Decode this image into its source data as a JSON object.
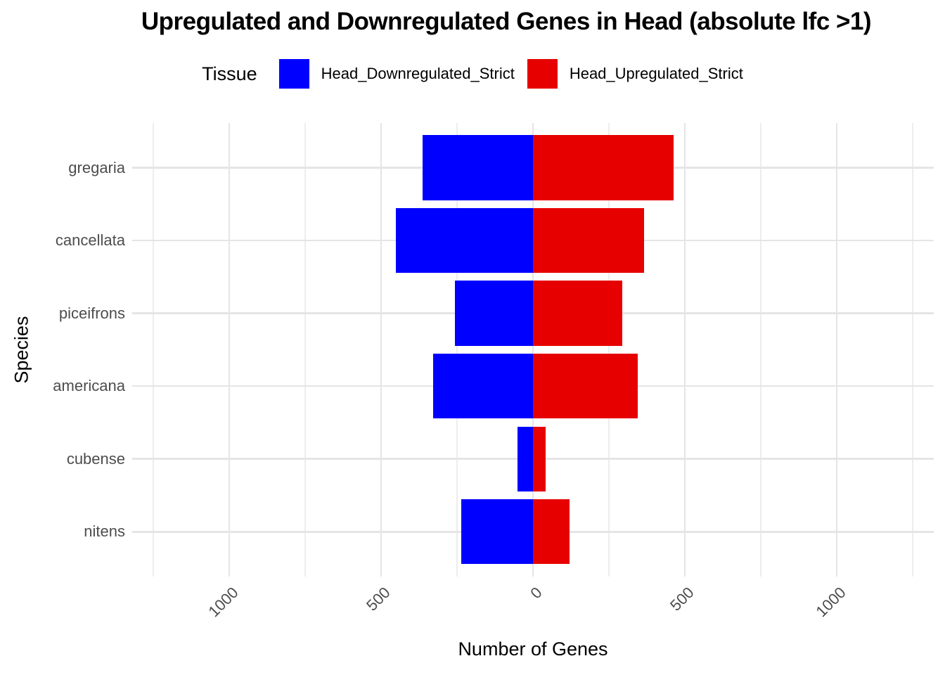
{
  "title": "Upregulated and Downregulated Genes in Head (absolute lfc >1)",
  "legend": {
    "title": "Tissue",
    "items": [
      {
        "label": "Head_Downregulated_Strict",
        "color": "#0000FF"
      },
      {
        "label": "Head_Upregulated_Strict",
        "color": "#E60000"
      }
    ]
  },
  "axes": {
    "x_title": "Number of Genes",
    "y_title": "Species"
  },
  "chart_data": {
    "type": "bar",
    "orientation": "horizontal-diverging",
    "title": "Upregulated and Downregulated Genes in Head (absolute lfc >1)",
    "xlabel": "Number of Genes",
    "ylabel": "Species",
    "categories": [
      "gregaria",
      "cancellata",
      "piceifrons",
      "americana",
      "cubense",
      "nitens"
    ],
    "series": [
      {
        "name": "Head_Downregulated_Strict",
        "direction": "negative",
        "color": "#0000FF",
        "values": [
          363,
          451,
          257,
          329,
          50,
          236
        ]
      },
      {
        "name": "Head_Upregulated_Strict",
        "direction": "positive",
        "color": "#E60000",
        "values": [
          462,
          365,
          293,
          346,
          42,
          121
        ]
      }
    ],
    "xlim": [
      -1320,
      1320
    ],
    "x_ticks": [
      -1000,
      -500,
      0,
      500,
      1000
    ],
    "x_tick_labels": [
      "1000",
      "500",
      "0",
      "500",
      "1000"
    ],
    "minor_tick_step": 250,
    "grid": true,
    "legend_position": "top",
    "colors": {
      "grid_major": "#E5E5E5",
      "grid_minor": "#EDEDED",
      "axis_text": "#4D4D4D",
      "title_text": "#000000",
      "background": "#FFFFFF"
    }
  }
}
